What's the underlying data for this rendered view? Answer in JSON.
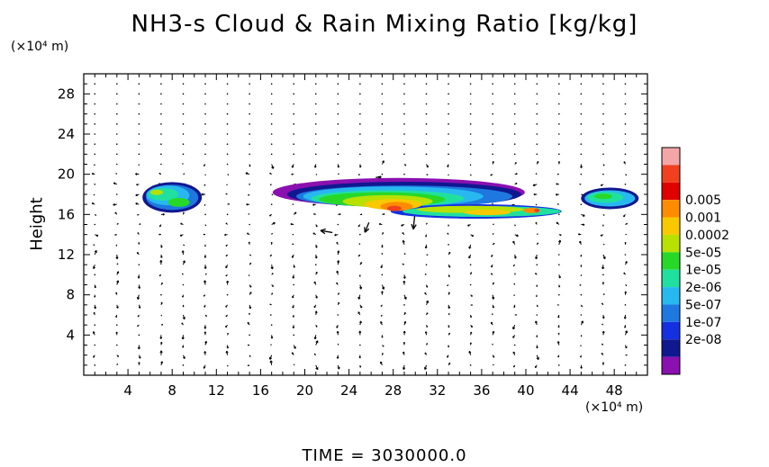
{
  "chart_data": {
    "type": "heatmap",
    "title": "NH3-s Cloud & Rain Mixing Ratio [kg/kg]",
    "ylabel": "Height",
    "y_unit": "(×10⁴ m)",
    "x_unit": "(×10⁴ m)",
    "footer": "TIME = 3030000.0",
    "xlim": [
      0,
      51
    ],
    "ylim": [
      0,
      30
    ],
    "x_ticks": [
      "4",
      "8",
      "12",
      "16",
      "20",
      "24",
      "28",
      "32",
      "36",
      "40",
      "44",
      "48"
    ],
    "y_ticks": [
      "4",
      "8",
      "12",
      "16",
      "20",
      "24",
      "28"
    ],
    "x_tick_values": [
      4,
      8,
      12,
      16,
      20,
      24,
      28,
      32,
      36,
      40,
      44,
      48
    ],
    "y_tick_values": [
      4,
      8,
      12,
      16,
      20,
      24,
      28
    ],
    "colorbar": {
      "colors": [
        "#f4a6a6",
        "#f04020",
        "#e00000",
        "#ff8c00",
        "#f8c800",
        "#b8e000",
        "#28d828",
        "#20e0a0",
        "#28b8f0",
        "#1e78e0",
        "#1430e0",
        "#101890",
        "#8a10b0"
      ],
      "labels": [
        "0.005",
        "0.001",
        "0.0002",
        "5e-05",
        "1e-05",
        "2e-06",
        "5e-07",
        "1e-07",
        "2e-08"
      ]
    },
    "cloud_regions": [
      {
        "x": [
          5.3,
          10.8
        ],
        "y": [
          16.0,
          19.2
        ],
        "level": "5e-07 to 1e-05"
      },
      {
        "x": [
          17.5,
          43.0
        ],
        "y": [
          15.8,
          19.5
        ],
        "level": "2e-08 to 0.001",
        "peak_x": 28,
        "peak_y": 16.8
      },
      {
        "x": [
          45.5,
          50.5
        ],
        "y": [
          16.3,
          19.0
        ],
        "level": "5e-07 to 5e-06"
      }
    ],
    "wind_vectors": "velocity arrows on a regular grid across the domain"
  }
}
